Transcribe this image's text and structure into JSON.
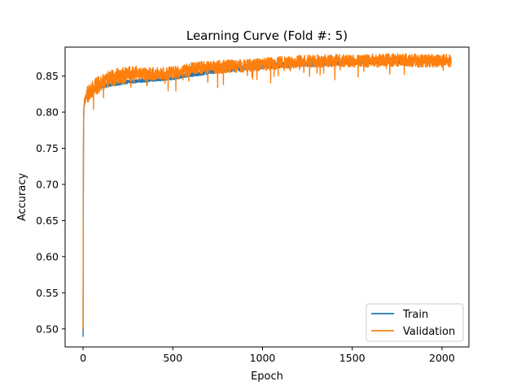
{
  "chart_data": {
    "type": "line",
    "title": "Learning Curve (Fold #: 5)",
    "xlabel": "Epoch",
    "ylabel": "Accuracy",
    "xlim": [
      -100,
      2150
    ],
    "ylim": [
      0.475,
      0.89
    ],
    "x_ticks": [
      0,
      500,
      1000,
      1500,
      2000
    ],
    "x_tick_labels": [
      "0",
      "500",
      "1000",
      "1500",
      "2000"
    ],
    "y_ticks": [
      0.5,
      0.55,
      0.6,
      0.65,
      0.7,
      0.75,
      0.8,
      0.85
    ],
    "y_tick_labels": [
      "0.50",
      "0.55",
      "0.60",
      "0.65",
      "0.70",
      "0.75",
      "0.80",
      "0.85"
    ],
    "grid": false,
    "legend_position": "lower-right",
    "series": [
      {
        "name": "Train",
        "color": "#1f77b4",
        "x": [
          0,
          1,
          2,
          3,
          5,
          8,
          10,
          15,
          20,
          30,
          50,
          75,
          100,
          150,
          200,
          250,
          300,
          400,
          500,
          600,
          700,
          800,
          900,
          1000,
          1100,
          1200,
          1300,
          1400,
          1500,
          1600,
          1700,
          1800,
          1900,
          2000,
          2050
        ],
        "y": [
          0.489,
          0.62,
          0.74,
          0.79,
          0.805,
          0.812,
          0.815,
          0.818,
          0.82,
          0.824,
          0.828,
          0.832,
          0.835,
          0.838,
          0.84,
          0.842,
          0.843,
          0.845,
          0.847,
          0.852,
          0.856,
          0.859,
          0.861,
          0.863,
          0.865,
          0.866,
          0.867,
          0.868,
          0.869,
          0.87,
          0.87,
          0.871,
          0.871,
          0.871,
          0.871
        ]
      },
      {
        "name": "Validation",
        "color": "#ff7f0e",
        "x": [
          0,
          1,
          2,
          3,
          5,
          8,
          10,
          15,
          20,
          30,
          50,
          75,
          100,
          125,
          150,
          200,
          250,
          300,
          400,
          500,
          550,
          600,
          700,
          800,
          900,
          1000,
          1100,
          1200,
          1300,
          1400,
          1500,
          1600,
          1700,
          1800,
          1900,
          2000,
          2050
        ],
        "y": [
          0.5,
          0.63,
          0.75,
          0.8,
          0.808,
          0.815,
          0.818,
          0.82,
          0.822,
          0.826,
          0.831,
          0.836,
          0.84,
          0.843,
          0.846,
          0.849,
          0.851,
          0.852,
          0.853,
          0.854,
          0.856,
          0.86,
          0.862,
          0.863,
          0.864,
          0.866,
          0.868,
          0.87,
          0.871,
          0.871,
          0.871,
          0.871,
          0.872,
          0.872,
          0.871,
          0.871,
          0.871
        ]
      }
    ]
  }
}
